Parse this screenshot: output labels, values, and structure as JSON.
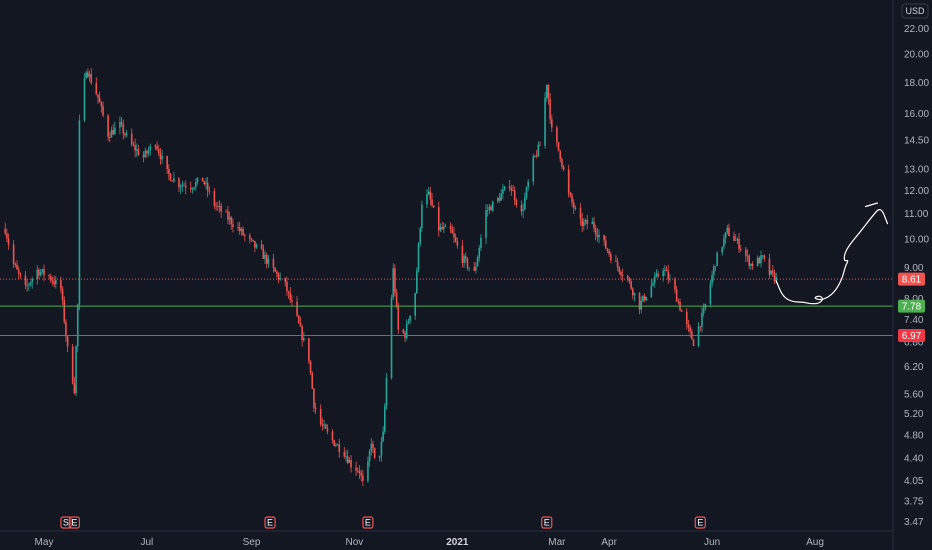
{
  "currency_label": "USD",
  "colors": {
    "background": "#131722",
    "up": "#26a69a",
    "down": "#ef5350",
    "text": "#b2b5be",
    "support_line": "#4caf50",
    "resistance_line": "#f23645",
    "drawing": "#ffffff"
  },
  "chart_data": {
    "type": "candlestick",
    "y_scale": "log",
    "ylim": [
      3.35,
      24.5
    ],
    "y_ticks": [
      "22.00",
      "20.00",
      "18.00",
      "16.00",
      "14.50",
      "13.00",
      "12.00",
      "11.00",
      "10.00",
      "9.00",
      "8.00",
      "7.40",
      "6.80",
      "6.20",
      "5.60",
      "5.20",
      "4.80",
      "4.40",
      "4.05",
      "3.75",
      "3.47"
    ],
    "x_ticks": [
      {
        "label": "May",
        "date": "2020-05-01",
        "year": false
      },
      {
        "label": "Jul",
        "date": "2020-07-01",
        "year": false
      },
      {
        "label": "Sep",
        "date": "2020-09-01",
        "year": false
      },
      {
        "label": "Nov",
        "date": "2020-11-01",
        "year": false
      },
      {
        "label": "2021",
        "date": "2021-01-01",
        "year": true
      },
      {
        "label": "Mar",
        "date": "2021-03-01",
        "year": false
      },
      {
        "label": "Apr",
        "date": "2021-04-01",
        "year": false
      },
      {
        "label": "Jun",
        "date": "2021-06-01",
        "year": false
      },
      {
        "label": "Aug",
        "date": "2021-08-01",
        "year": false
      }
    ],
    "price_path": [
      [
        "2020-04-08",
        10.4
      ],
      [
        "2020-04-13",
        9.1
      ],
      [
        "2020-04-20",
        8.3
      ],
      [
        "2020-04-27",
        8.9
      ],
      [
        "2020-05-04",
        8.7
      ],
      [
        "2020-05-11",
        8.3
      ],
      [
        "2020-05-15",
        6.6
      ],
      [
        "2020-05-19",
        5.7
      ],
      [
        "2020-05-21",
        7.8
      ],
      [
        "2020-05-22",
        15.4
      ],
      [
        "2020-05-26",
        19.0
      ],
      [
        "2020-06-02",
        17.0
      ],
      [
        "2020-06-08",
        14.8
      ],
      [
        "2020-06-15",
        15.3
      ],
      [
        "2020-06-22",
        14.2
      ],
      [
        "2020-06-29",
        13.6
      ],
      [
        "2020-07-06",
        14.4
      ],
      [
        "2020-07-13",
        12.8
      ],
      [
        "2020-07-20",
        12.3
      ],
      [
        "2020-07-27",
        12.2
      ],
      [
        "2020-08-03",
        12.5
      ],
      [
        "2020-08-10",
        11.4
      ],
      [
        "2020-08-17",
        10.9
      ],
      [
        "2020-08-24",
        10.4
      ],
      [
        "2020-08-31",
        9.9
      ],
      [
        "2020-09-07",
        9.5
      ],
      [
        "2020-09-14",
        8.9
      ],
      [
        "2020-09-21",
        8.4
      ],
      [
        "2020-09-28",
        7.4
      ],
      [
        "2020-10-05",
        6.4
      ],
      [
        "2020-10-08",
        5.4
      ],
      [
        "2020-10-12",
        5.0
      ],
      [
        "2020-10-19",
        4.7
      ],
      [
        "2020-10-26",
        4.5
      ],
      [
        "2020-10-30",
        4.3
      ],
      [
        "2020-11-04",
        4.2
      ],
      [
        "2020-11-07",
        3.9
      ],
      [
        "2020-11-11",
        4.7
      ],
      [
        "2020-11-14",
        4.2
      ],
      [
        "2020-11-18",
        4.8
      ],
      [
        "2020-11-21",
        6.6
      ],
      [
        "2020-11-24",
        8.9
      ],
      [
        "2020-11-27",
        7.1
      ],
      [
        "2020-12-01",
        7.0
      ],
      [
        "2020-12-04",
        7.6
      ],
      [
        "2020-12-07",
        8.2
      ],
      [
        "2020-12-11",
        11.5
      ],
      [
        "2020-12-15",
        11.8
      ],
      [
        "2020-12-21",
        10.4
      ],
      [
        "2020-12-28",
        10.3
      ],
      [
        "2021-01-04",
        9.3
      ],
      [
        "2021-01-11",
        8.8
      ],
      [
        "2021-01-18",
        11.1
      ],
      [
        "2021-01-25",
        11.6
      ],
      [
        "2021-02-01",
        12.3
      ],
      [
        "2021-02-08",
        11.0
      ],
      [
        "2021-02-15",
        13.4
      ],
      [
        "2021-02-19",
        14.2
      ],
      [
        "2021-02-23",
        18.0
      ],
      [
        "2021-02-26",
        15.0
      ],
      [
        "2021-03-03",
        13.7
      ],
      [
        "2021-03-08",
        11.8
      ],
      [
        "2021-03-15",
        10.6
      ],
      [
        "2021-03-22",
        10.6
      ],
      [
        "2021-03-29",
        9.8
      ],
      [
        "2021-04-05",
        9.1
      ],
      [
        "2021-04-12",
        8.6
      ],
      [
        "2021-04-19",
        7.8
      ],
      [
        "2021-04-26",
        8.4
      ],
      [
        "2021-05-03",
        9.0
      ],
      [
        "2021-05-10",
        8.2
      ],
      [
        "2021-05-17",
        7.2
      ],
      [
        "2021-05-21",
        6.8
      ],
      [
        "2021-05-27",
        7.6
      ],
      [
        "2021-06-03",
        9.2
      ],
      [
        "2021-06-10",
        10.3
      ],
      [
        "2021-06-17",
        9.8
      ],
      [
        "2021-06-24",
        9.1
      ],
      [
        "2021-07-01",
        9.3
      ],
      [
        "2021-07-05",
        8.8
      ],
      [
        "2021-07-09",
        8.61
      ]
    ],
    "last_price": {
      "label": "8.61",
      "value": 8.61
    },
    "horizontal_lines": [
      {
        "label": "7.78",
        "value": 7.78,
        "kind": "support"
      },
      {
        "label": "6.97",
        "value": 6.97,
        "kind": "resistance"
      }
    ],
    "drawing_path": [
      [
        "2021-07-09",
        8.55
      ],
      [
        "2021-07-13",
        8.05
      ],
      [
        "2021-07-19",
        7.9
      ],
      [
        "2021-07-25",
        7.9
      ],
      [
        "2021-07-29",
        7.85
      ],
      [
        "2021-08-03",
        7.85
      ],
      [
        "2021-08-06",
        7.98
      ],
      [
        "2021-08-04",
        8.1
      ],
      [
        "2021-07-31",
        8.02
      ],
      [
        "2021-08-05",
        7.95
      ],
      [
        "2021-08-12",
        8.15
      ],
      [
        "2021-08-17",
        8.6
      ],
      [
        "2021-08-19",
        9.05
      ],
      [
        "2021-08-21",
        9.25
      ],
      [
        "2021-08-18",
        9.2
      ],
      [
        "2021-08-19",
        9.6
      ],
      [
        "2021-08-28",
        10.3
      ],
      [
        "2021-09-04",
        10.9
      ],
      [
        "2021-09-09",
        11.3
      ],
      [
        "2021-09-13",
        10.6
      ]
    ],
    "drawing_tick": [
      [
        "2021-08-31",
        11.3
      ],
      [
        "2021-09-07",
        11.45
      ]
    ],
    "events": [
      {
        "label": "S",
        "date": "2020-05-14",
        "color": "#ef5350"
      },
      {
        "label": "E",
        "date": "2020-05-19",
        "color": "#ef5350"
      },
      {
        "label": "E",
        "date": "2020-09-12",
        "color": "#ef5350"
      },
      {
        "label": "E",
        "date": "2020-11-09",
        "color": "#ef5350"
      },
      {
        "label": "E",
        "date": "2021-02-23",
        "color": "#ef5350"
      },
      {
        "label": "E",
        "date": "2021-05-25",
        "color": "#ef5350"
      }
    ]
  }
}
